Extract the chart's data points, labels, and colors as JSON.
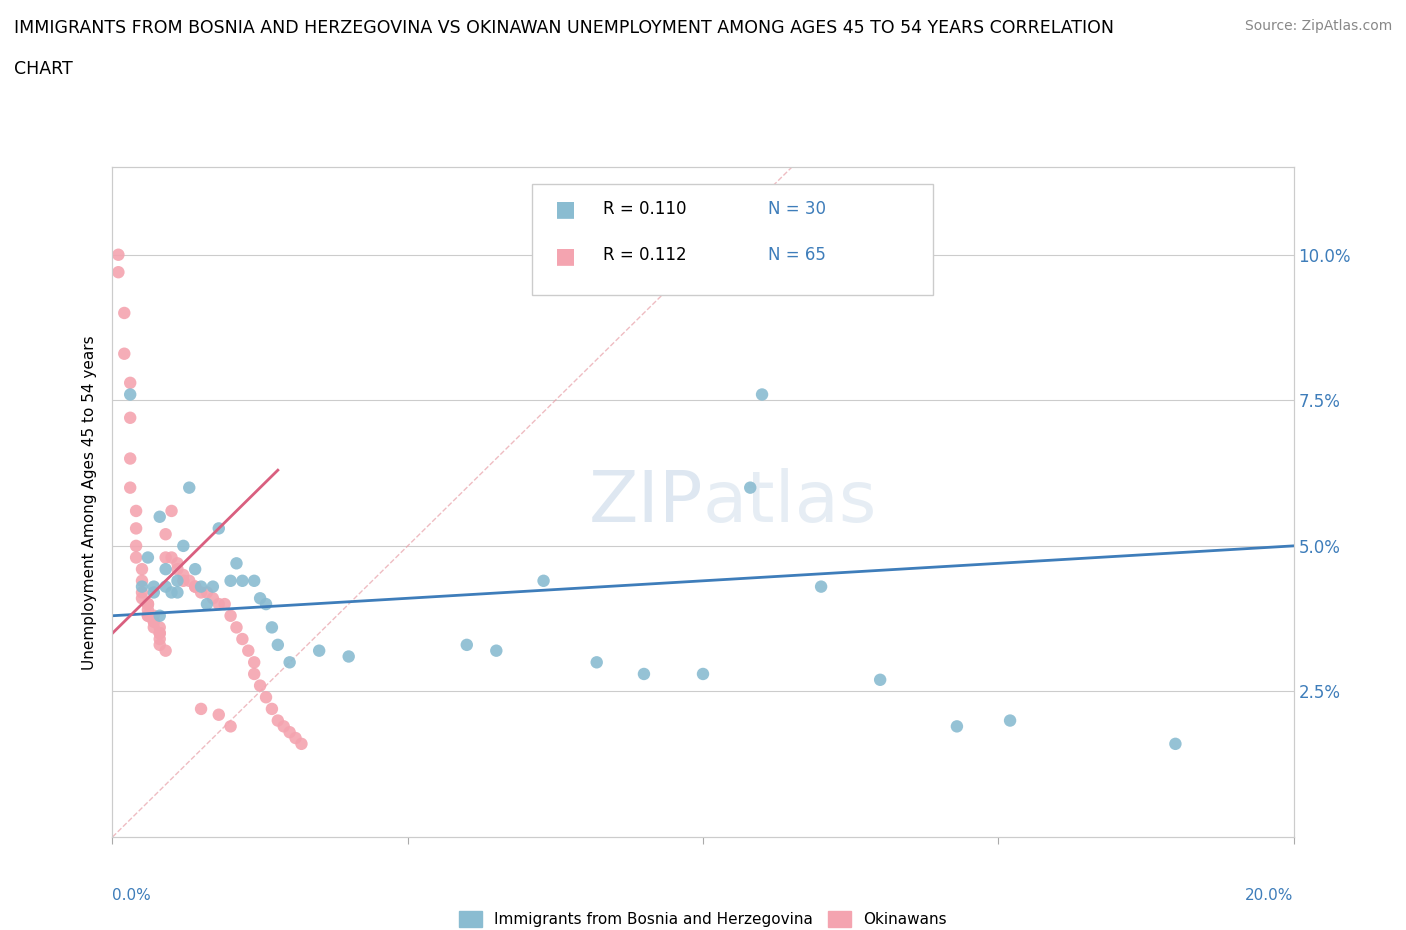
{
  "title_line1": "IMMIGRANTS FROM BOSNIA AND HERZEGOVINA VS OKINAWAN UNEMPLOYMENT AMONG AGES 45 TO 54 YEARS CORRELATION",
  "title_line2": "CHART",
  "source": "Source: ZipAtlas.com",
  "ylabel": "Unemployment Among Ages 45 to 54 years",
  "ytick_labels": [
    "2.5%",
    "5.0%",
    "7.5%",
    "10.0%"
  ],
  "ytick_values": [
    0.025,
    0.05,
    0.075,
    0.1
  ],
  "xlim": [
    0.0,
    0.2
  ],
  "ylim": [
    0.0,
    0.115
  ],
  "watermark": "ZIPatlas",
  "blue_color": "#8abcd1",
  "pink_color": "#f4a4b0",
  "blue_line_color": "#3e7dba",
  "pink_line_color": "#d95f7f",
  "blue_line": [
    [
      0.0,
      0.038
    ],
    [
      0.2,
      0.05
    ]
  ],
  "pink_line": [
    [
      0.0,
      0.035
    ],
    [
      0.028,
      0.063
    ]
  ],
  "diag_line": [
    [
      0.0,
      0.0
    ],
    [
      0.115,
      0.115
    ]
  ],
  "blue_scatter": [
    [
      0.003,
      0.076
    ],
    [
      0.005,
      0.043
    ],
    [
      0.006,
      0.048
    ],
    [
      0.007,
      0.042
    ],
    [
      0.007,
      0.043
    ],
    [
      0.008,
      0.038
    ],
    [
      0.008,
      0.055
    ],
    [
      0.009,
      0.046
    ],
    [
      0.009,
      0.043
    ],
    [
      0.01,
      0.042
    ],
    [
      0.011,
      0.042
    ],
    [
      0.011,
      0.044
    ],
    [
      0.012,
      0.05
    ],
    [
      0.013,
      0.06
    ],
    [
      0.014,
      0.046
    ],
    [
      0.015,
      0.043
    ],
    [
      0.016,
      0.04
    ],
    [
      0.017,
      0.043
    ],
    [
      0.018,
      0.053
    ],
    [
      0.02,
      0.044
    ],
    [
      0.021,
      0.047
    ],
    [
      0.022,
      0.044
    ],
    [
      0.024,
      0.044
    ],
    [
      0.025,
      0.041
    ],
    [
      0.026,
      0.04
    ],
    [
      0.027,
      0.036
    ],
    [
      0.028,
      0.033
    ],
    [
      0.03,
      0.03
    ],
    [
      0.035,
      0.032
    ],
    [
      0.04,
      0.031
    ],
    [
      0.06,
      0.033
    ],
    [
      0.065,
      0.032
    ],
    [
      0.073,
      0.044
    ],
    [
      0.082,
      0.03
    ],
    [
      0.09,
      0.028
    ],
    [
      0.1,
      0.028
    ],
    [
      0.108,
      0.06
    ],
    [
      0.11,
      0.076
    ],
    [
      0.12,
      0.043
    ],
    [
      0.13,
      0.027
    ],
    [
      0.143,
      0.019
    ],
    [
      0.152,
      0.02
    ],
    [
      0.18,
      0.016
    ]
  ],
  "pink_scatter": [
    [
      0.001,
      0.1
    ],
    [
      0.001,
      0.097
    ],
    [
      0.002,
      0.09
    ],
    [
      0.002,
      0.083
    ],
    [
      0.003,
      0.078
    ],
    [
      0.003,
      0.072
    ],
    [
      0.003,
      0.065
    ],
    [
      0.003,
      0.06
    ],
    [
      0.004,
      0.056
    ],
    [
      0.004,
      0.053
    ],
    [
      0.004,
      0.05
    ],
    [
      0.004,
      0.048
    ],
    [
      0.005,
      0.046
    ],
    [
      0.005,
      0.044
    ],
    [
      0.005,
      0.042
    ],
    [
      0.005,
      0.041
    ],
    [
      0.006,
      0.04
    ],
    [
      0.006,
      0.04
    ],
    [
      0.006,
      0.04
    ],
    [
      0.006,
      0.039
    ],
    [
      0.006,
      0.038
    ],
    [
      0.006,
      0.038
    ],
    [
      0.007,
      0.038
    ],
    [
      0.007,
      0.037
    ],
    [
      0.007,
      0.037
    ],
    [
      0.007,
      0.036
    ],
    [
      0.008,
      0.036
    ],
    [
      0.008,
      0.035
    ],
    [
      0.008,
      0.035
    ],
    [
      0.008,
      0.034
    ],
    [
      0.008,
      0.033
    ],
    [
      0.009,
      0.032
    ],
    [
      0.009,
      0.048
    ],
    [
      0.009,
      0.052
    ],
    [
      0.01,
      0.056
    ],
    [
      0.01,
      0.048
    ],
    [
      0.011,
      0.047
    ],
    [
      0.011,
      0.046
    ],
    [
      0.012,
      0.045
    ],
    [
      0.012,
      0.044
    ],
    [
      0.013,
      0.044
    ],
    [
      0.014,
      0.043
    ],
    [
      0.014,
      0.043
    ],
    [
      0.015,
      0.042
    ],
    [
      0.016,
      0.042
    ],
    [
      0.017,
      0.041
    ],
    [
      0.018,
      0.04
    ],
    [
      0.019,
      0.04
    ],
    [
      0.02,
      0.038
    ],
    [
      0.021,
      0.036
    ],
    [
      0.022,
      0.034
    ],
    [
      0.023,
      0.032
    ],
    [
      0.024,
      0.03
    ],
    [
      0.024,
      0.028
    ],
    [
      0.025,
      0.026
    ],
    [
      0.026,
      0.024
    ],
    [
      0.027,
      0.022
    ],
    [
      0.028,
      0.02
    ],
    [
      0.029,
      0.019
    ],
    [
      0.03,
      0.018
    ],
    [
      0.031,
      0.017
    ],
    [
      0.032,
      0.016
    ],
    [
      0.015,
      0.022
    ],
    [
      0.018,
      0.021
    ],
    [
      0.02,
      0.019
    ]
  ]
}
